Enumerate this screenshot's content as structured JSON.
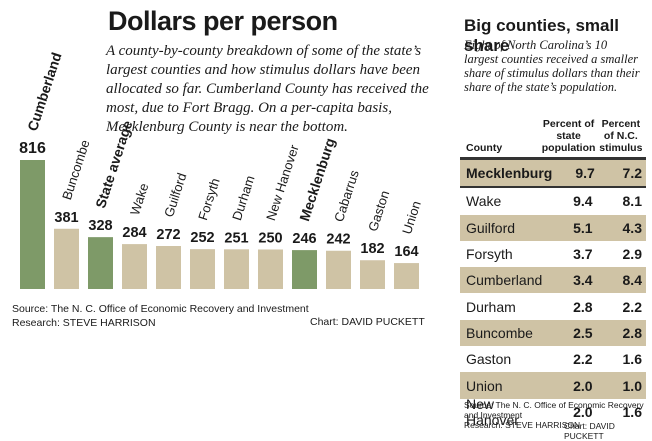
{
  "title": "Dollars per person",
  "subtitle": "A county-by-county breakdown of some of the state’s largest counties and how stimulus dollars have been allocated so far. Cumberland County has received the most, due to Fort Bragg. On a per-capita basis, Mecklenburg County is near the bottom.",
  "source": "Source: The N. C. Office of Economic Recovery and Investment",
  "research": "Research: STEVE HARRISON",
  "chart_credit": "Chart: DAVID PUCKETT",
  "colors": {
    "highlight": "#7e9a68",
    "normal": "#cfc3a5"
  },
  "chart_data": [
    {
      "type": "bar",
      "title": "Dollars per person",
      "categories": [
        "Cumberland",
        "Buncombe",
        "State average",
        "Wake",
        "Guilford",
        "Forsyth",
        "Durham",
        "New Hanover",
        "Mecklenburg",
        "Cabarrus",
        "Gaston",
        "Union"
      ],
      "values": [
        816,
        381,
        328,
        284,
        272,
        252,
        251,
        250,
        246,
        242,
        182,
        164
      ],
      "highlighted": [
        "Cumberland",
        "State average",
        "Mecklenburg"
      ],
      "ylim": [
        0,
        816
      ],
      "grid": false
    },
    {
      "type": "table",
      "title": "Big counties, small share",
      "subtitle": "Eight of North Carolina’s 10 largest counties received a smaller share of stimulus dollars than their share of the state’s population.",
      "columns": [
        "County",
        "Percent of state population",
        "Percent of N.C. stimulus"
      ],
      "rows": [
        [
          "Mecklenburg",
          "9.7",
          "7.2"
        ],
        [
          "Wake",
          "9.4",
          "8.1"
        ],
        [
          "Guilford",
          "5.1",
          "4.3"
        ],
        [
          "Forsyth",
          "3.7",
          "2.9"
        ],
        [
          "Cumberland",
          "3.4",
          "8.4"
        ],
        [
          "Durham",
          "2.8",
          "2.2"
        ],
        [
          "Buncombe",
          "2.5",
          "2.8"
        ],
        [
          "Gaston",
          "2.2",
          "1.6"
        ],
        [
          "Union",
          "2.0",
          "1.0"
        ],
        [
          "New Hanover",
          "2.0",
          "1.6"
        ]
      ],
      "source": "Source: The N. C. Office of Economic Recovery and Investment",
      "research": "Research: STEVE HARRISON",
      "credit": "Chart: DAVID PUCKETT"
    }
  ]
}
